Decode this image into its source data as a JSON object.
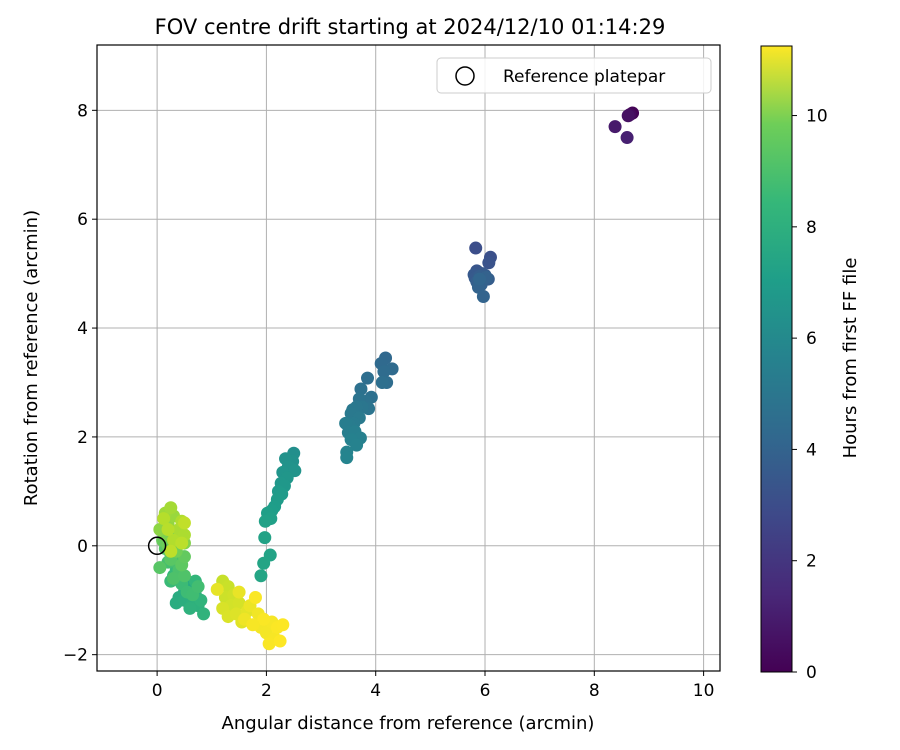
{
  "chart_data": {
    "type": "scatter",
    "title": "FOV centre drift starting at 2024/12/10 01:14:29",
    "xlabel": "Angular distance from reference (arcmin)",
    "ylabel": "Rotation from reference (arcmin)",
    "xlim": [
      -1.1,
      10.3
    ],
    "ylim": [
      -2.3,
      9.2
    ],
    "xticks": [
      0,
      2,
      4,
      6,
      8,
      10
    ],
    "yticks": [
      -2,
      0,
      2,
      4,
      6,
      8
    ],
    "grid": true,
    "legend": {
      "position": "top-right",
      "entries": [
        "Reference platepar"
      ]
    },
    "reference_point": {
      "x": 0,
      "y": 0
    },
    "colorbar": {
      "label": "Hours from first FF file",
      "min": 0,
      "max": 11.25,
      "ticks": [
        0,
        2,
        4,
        6,
        8,
        10
      ],
      "colormap": "viridis"
    },
    "points": [
      [
        8.7,
        7.95,
        0.05
      ],
      [
        8.65,
        7.92,
        0.3
      ],
      [
        8.62,
        7.9,
        0.5
      ],
      [
        8.38,
        7.7,
        0.8
      ],
      [
        8.6,
        7.5,
        1.0
      ],
      [
        5.83,
        5.47,
        2.7
      ],
      [
        6.1,
        5.3,
        2.8
      ],
      [
        6.07,
        5.2,
        2.9
      ],
      [
        5.85,
        5.05,
        3.0
      ],
      [
        5.95,
        5.0,
        3.1
      ],
      [
        5.8,
        4.98,
        3.15
      ],
      [
        5.82,
        4.92,
        3.2
      ],
      [
        6.0,
        4.97,
        3.25
      ],
      [
        6.06,
        4.9,
        3.3
      ],
      [
        5.9,
        4.95,
        3.35
      ],
      [
        5.85,
        4.85,
        3.4
      ],
      [
        5.93,
        4.8,
        3.45
      ],
      [
        6.02,
        4.93,
        3.5
      ],
      [
        5.88,
        4.75,
        3.55
      ],
      [
        5.97,
        4.58,
        3.6
      ],
      [
        5.9,
        4.9,
        3.65
      ],
      [
        4.18,
        3.45,
        3.8
      ],
      [
        4.1,
        3.35,
        3.85
      ],
      [
        4.3,
        3.25,
        3.9
      ],
      [
        4.15,
        3.2,
        3.95
      ],
      [
        4.2,
        3.0,
        4.0
      ],
      [
        3.85,
        3.08,
        4.05
      ],
      [
        4.12,
        3.0,
        4.1
      ],
      [
        3.92,
        2.73,
        4.15
      ],
      [
        3.73,
        2.88,
        4.2
      ],
      [
        3.82,
        2.65,
        4.25
      ],
      [
        3.7,
        2.7,
        4.3
      ],
      [
        3.87,
        2.52,
        4.35
      ],
      [
        3.75,
        2.55,
        4.4
      ],
      [
        3.65,
        2.55,
        4.45
      ],
      [
        3.58,
        2.5,
        4.5
      ],
      [
        3.55,
        2.43,
        4.55
      ],
      [
        3.7,
        2.35,
        4.6
      ],
      [
        3.6,
        2.25,
        4.65
      ],
      [
        3.52,
        2.22,
        4.7
      ],
      [
        3.45,
        2.25,
        4.75
      ],
      [
        3.5,
        2.08,
        4.8
      ],
      [
        3.62,
        2.1,
        4.85
      ],
      [
        3.72,
        1.98,
        4.9
      ],
      [
        3.55,
        1.95,
        4.95
      ],
      [
        3.65,
        1.85,
        5.0
      ],
      [
        3.47,
        1.72,
        5.05
      ],
      [
        3.47,
        1.62,
        5.1
      ],
      [
        2.5,
        1.7,
        5.6
      ],
      [
        2.48,
        1.55,
        5.65
      ],
      [
        2.35,
        1.6,
        5.7
      ],
      [
        2.4,
        1.45,
        5.75
      ],
      [
        2.52,
        1.38,
        5.8
      ],
      [
        2.3,
        1.35,
        5.85
      ],
      [
        2.38,
        1.25,
        5.9
      ],
      [
        2.27,
        1.15,
        5.95
      ],
      [
        2.33,
        1.1,
        6.0
      ],
      [
        2.22,
        1.0,
        6.05
      ],
      [
        2.28,
        0.95,
        6.1
      ],
      [
        2.2,
        0.85,
        6.15
      ],
      [
        2.15,
        0.72,
        6.2
      ],
      [
        2.1,
        0.65,
        6.25
      ],
      [
        2.02,
        0.6,
        6.3
      ],
      [
        2.08,
        0.5,
        6.35
      ],
      [
        1.98,
        0.45,
        6.4
      ],
      [
        1.97,
        0.15,
        6.45
      ],
      [
        2.07,
        -0.17,
        6.5
      ],
      [
        1.95,
        -0.32,
        6.55
      ],
      [
        1.9,
        -0.55,
        6.6
      ],
      [
        0.45,
        -0.55,
        6.7
      ],
      [
        0.55,
        -0.65,
        6.75
      ],
      [
        0.6,
        -0.75,
        6.8
      ],
      [
        0.5,
        -0.85,
        6.85
      ],
      [
        0.4,
        -0.95,
        6.9
      ],
      [
        0.35,
        -1.05,
        6.95
      ],
      [
        0.5,
        -1.0,
        7.0
      ],
      [
        0.65,
        -1.05,
        7.05
      ],
      [
        0.7,
        -0.9,
        7.1
      ],
      [
        0.75,
        -1.1,
        7.15
      ],
      [
        0.6,
        -1.15,
        7.2
      ],
      [
        0.85,
        -1.25,
        7.25
      ],
      [
        0.8,
        -1.0,
        7.3
      ],
      [
        0.7,
        -0.65,
        7.4
      ],
      [
        0.3,
        -0.55,
        7.5
      ],
      [
        0.35,
        -0.45,
        7.55
      ],
      [
        0.25,
        -0.65,
        7.6
      ],
      [
        0.45,
        -0.7,
        7.65
      ],
      [
        0.55,
        -0.85,
        7.7
      ],
      [
        0.65,
        -0.9,
        7.75
      ],
      [
        0.75,
        -0.75,
        7.8
      ],
      [
        0.2,
        -0.3,
        7.85
      ],
      [
        0.35,
        -0.3,
        7.9
      ],
      [
        0.25,
        -0.15,
        7.95
      ],
      [
        0.4,
        -0.45,
        8.0
      ],
      [
        0.3,
        -0.6,
        8.05
      ],
      [
        0.5,
        -0.55,
        8.1
      ],
      [
        0.15,
        -0.05,
        8.2
      ],
      [
        0.05,
        -0.4,
        8.25
      ],
      [
        0.25,
        -0.25,
        8.3
      ],
      [
        0.45,
        -0.35,
        8.4
      ],
      [
        0.5,
        -0.2,
        8.5
      ],
      [
        0.1,
        0.1,
        8.6
      ],
      [
        0.2,
        0.0,
        8.7
      ],
      [
        0.35,
        -0.1,
        8.8
      ],
      [
        0.3,
        0.15,
        8.9
      ],
      [
        0.15,
        0.2,
        9.0
      ],
      [
        0.5,
        0.05,
        9.1
      ],
      [
        0.05,
        0.3,
        9.3
      ],
      [
        0.2,
        0.4,
        9.4
      ],
      [
        0.3,
        0.55,
        9.5
      ],
      [
        0.15,
        0.6,
        9.6
      ],
      [
        0.25,
        0.7,
        9.7
      ],
      [
        0.4,
        0.3,
        9.8
      ],
      [
        0.5,
        0.2,
        9.85
      ],
      [
        0.45,
        0.45,
        9.9
      ],
      [
        0.3,
        0.1,
        9.95
      ],
      [
        0.12,
        0.5,
        10.0
      ],
      [
        0.2,
        0.3,
        10.05
      ],
      [
        0.45,
        0.05,
        10.1
      ],
      [
        0.25,
        -0.1,
        10.15
      ],
      [
        0.5,
        0.42,
        10.2
      ],
      [
        1.2,
        -0.65,
        10.3
      ],
      [
        1.3,
        -0.75,
        10.35
      ],
      [
        1.25,
        -0.95,
        10.4
      ],
      [
        1.4,
        -0.9,
        10.45
      ],
      [
        1.35,
        -1.1,
        10.5
      ],
      [
        1.5,
        -1.05,
        10.55
      ],
      [
        1.2,
        -1.15,
        10.6
      ],
      [
        1.3,
        -1.3,
        10.65
      ],
      [
        1.45,
        -1.25,
        10.7
      ],
      [
        1.55,
        -1.4,
        10.75
      ],
      [
        1.65,
        -1.2,
        10.8
      ],
      [
        1.1,
        -0.8,
        10.85
      ],
      [
        1.5,
        -0.85,
        10.9
      ],
      [
        1.7,
        -1.1,
        10.95
      ],
      [
        1.6,
        -1.35,
        11.0
      ],
      [
        1.85,
        -1.25,
        11.05
      ],
      [
        1.9,
        -1.5,
        11.08
      ],
      [
        2.0,
        -1.6,
        11.1
      ],
      [
        2.1,
        -1.4,
        11.12
      ],
      [
        2.15,
        -1.7,
        11.15
      ],
      [
        2.05,
        -1.8,
        11.18
      ],
      [
        1.95,
        -1.35,
        11.2
      ],
      [
        2.2,
        -1.5,
        11.22
      ],
      [
        2.3,
        -1.45,
        11.24
      ],
      [
        2.25,
        -1.75,
        11.25
      ],
      [
        1.8,
        -0.95,
        11.2
      ],
      [
        1.75,
        -1.45,
        11.15
      ]
    ]
  }
}
